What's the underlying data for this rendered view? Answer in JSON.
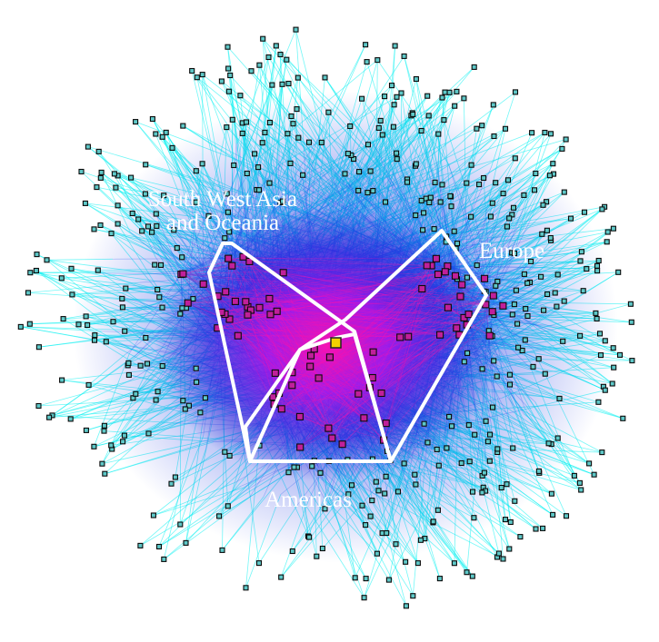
{
  "figure": {
    "labels": {
      "asia_line1": "South West Asia",
      "asia_line2": "and Oceania",
      "europe": "Europe",
      "americas": "Americas"
    }
  },
  "colors": {
    "background": "#ffffff",
    "edge_outer": "#00f0f0",
    "edge_mid": "#2255ee",
    "core_blue": "#1010c8",
    "core_purple": "#8a10e0",
    "core_magenta": "#ff10b0",
    "hub_node": "#f2d000",
    "node_border": "#0a0a0a",
    "hull_stroke": "#ffffff",
    "label_text": "#ffffff"
  }
}
